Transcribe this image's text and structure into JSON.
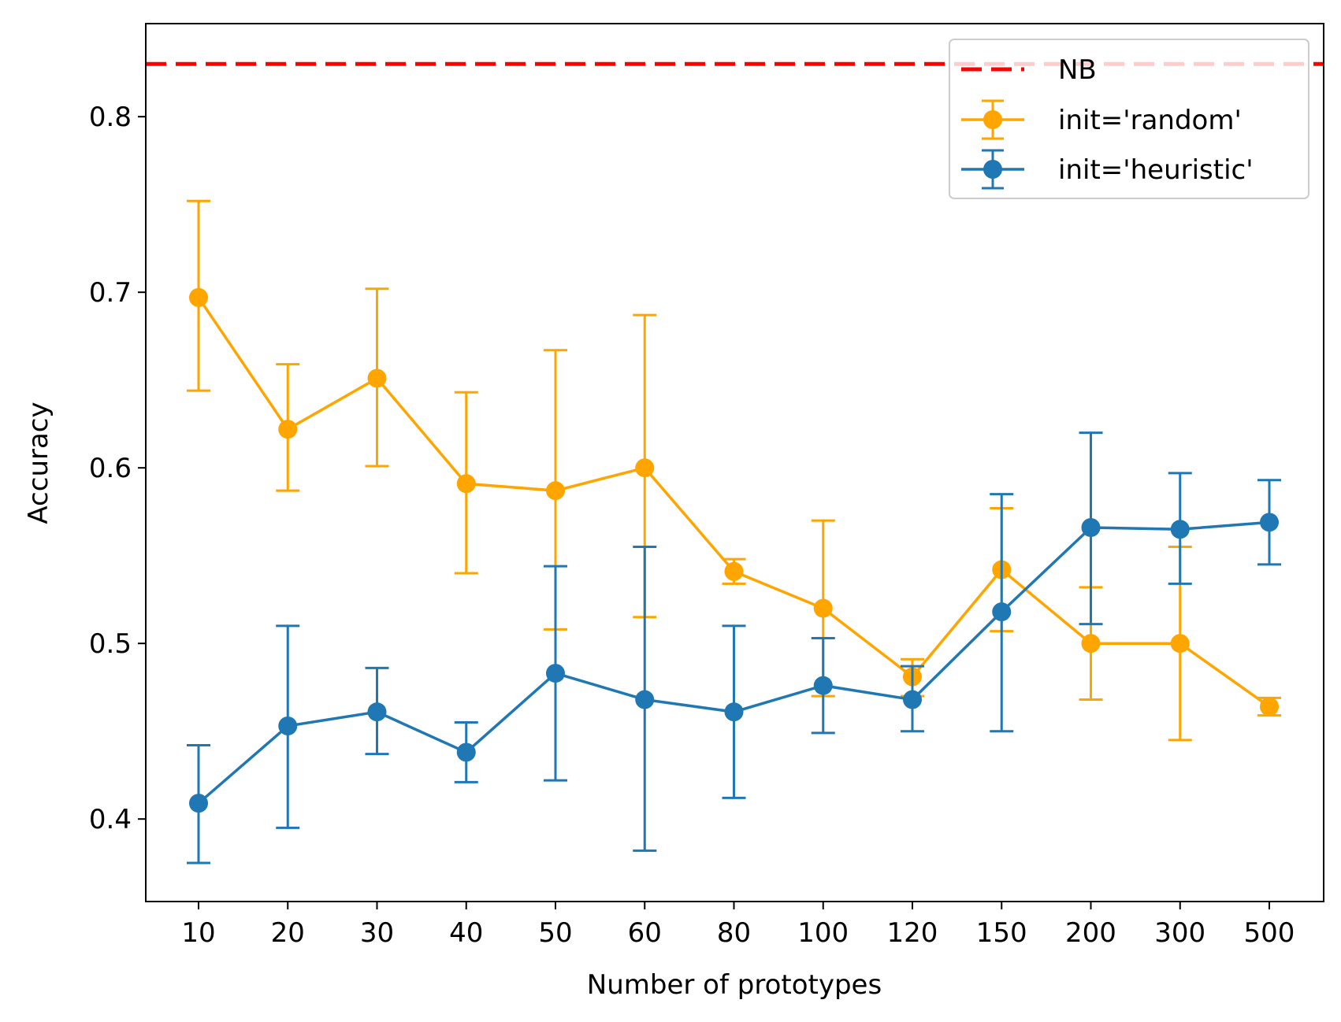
{
  "chart_data": {
    "type": "line",
    "title": "",
    "xlabel": "Number of prototypes",
    "ylabel": "Accuracy",
    "categories": [
      "10",
      "20",
      "30",
      "40",
      "50",
      "60",
      "80",
      "100",
      "120",
      "150",
      "200",
      "300",
      "500"
    ],
    "ylim": [
      0.353,
      0.853
    ],
    "yticks": [
      0.4,
      0.5,
      0.6,
      0.7,
      0.8
    ],
    "ytick_labels": [
      "0.4",
      "0.5",
      "0.6",
      "0.7",
      "0.8"
    ],
    "grid": false,
    "legend_position": "top-right",
    "reference_line": {
      "name": "NB",
      "value": 0.83,
      "color": "#ff0000",
      "style": "dashed"
    },
    "series": [
      {
        "name": "init='random'",
        "color": "#ffa500",
        "values": [
          0.697,
          0.622,
          0.651,
          0.591,
          0.587,
          0.6,
          0.541,
          0.52,
          0.481,
          0.542,
          0.5,
          0.5,
          0.464
        ],
        "err_low": [
          0.644,
          0.587,
          0.601,
          0.54,
          0.508,
          0.515,
          0.534,
          0.47,
          0.47,
          0.507,
          0.468,
          0.445,
          0.459
        ],
        "err_high": [
          0.752,
          0.659,
          0.702,
          0.643,
          0.667,
          0.687,
          0.548,
          0.57,
          0.491,
          0.577,
          0.532,
          0.555,
          0.469
        ]
      },
      {
        "name": "init='heuristic'",
        "color": "#1f77b4",
        "values": [
          0.409,
          0.453,
          0.461,
          0.438,
          0.483,
          0.468,
          0.461,
          0.476,
          0.468,
          0.518,
          0.566,
          0.565,
          0.569
        ],
        "err_low": [
          0.375,
          0.395,
          0.437,
          0.421,
          0.422,
          0.382,
          0.412,
          0.449,
          0.45,
          0.45,
          0.511,
          0.534,
          0.545
        ],
        "err_high": [
          0.442,
          0.51,
          0.486,
          0.455,
          0.544,
          0.555,
          0.51,
          0.503,
          0.487,
          0.585,
          0.62,
          0.597,
          0.593
        ]
      }
    ]
  }
}
